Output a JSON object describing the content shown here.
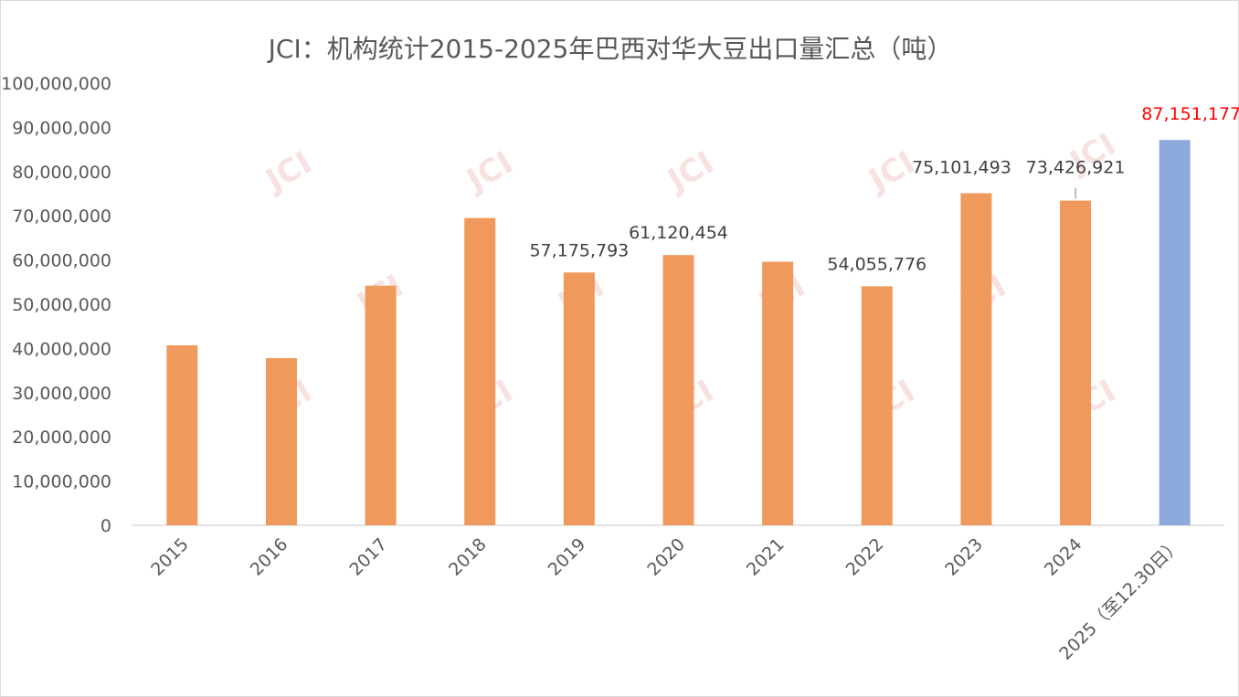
{
  "chart_data": {
    "type": "bar",
    "title": "JCI：机构统计2015-2025年巴西对华大豆出口量汇总（吨）",
    "categories": [
      "2015",
      "2016",
      "2017",
      "2018",
      "2019",
      "2020",
      "2021",
      "2022",
      "2023",
      "2024",
      "2025（至12.30日）"
    ],
    "values": [
      40700000,
      37800000,
      54200000,
      69500000,
      57175793,
      61120454,
      59600000,
      54055776,
      75101493,
      73426921,
      87151177
    ],
    "data_labels": [
      "",
      "",
      "",
      "",
      "57,175,793",
      "61,120,454",
      "",
      "54,055,776",
      "75,101,493",
      "73,426,921",
      "87,151,177"
    ],
    "ylim": [
      0,
      100000000
    ],
    "yticks": [
      0,
      10000000,
      20000000,
      30000000,
      40000000,
      50000000,
      60000000,
      70000000,
      80000000,
      90000000,
      100000000
    ],
    "ytick_labels": [
      "0",
      "10,000,000",
      "20,000,000",
      "30,000,000",
      "40,000,000",
      "50,000,000",
      "60,000,000",
      "70,000,000",
      "80,000,000",
      "90,000,000",
      "100,000,000"
    ],
    "grid": false,
    "legend": "none",
    "watermark": "JCI",
    "colors": {
      "bar": "#f0995c",
      "highlight_bar": "#8eaadc",
      "highlight_label": "#ff0000",
      "text": "#595959",
      "label": "#404040",
      "axis": "#d9d9d9"
    }
  }
}
